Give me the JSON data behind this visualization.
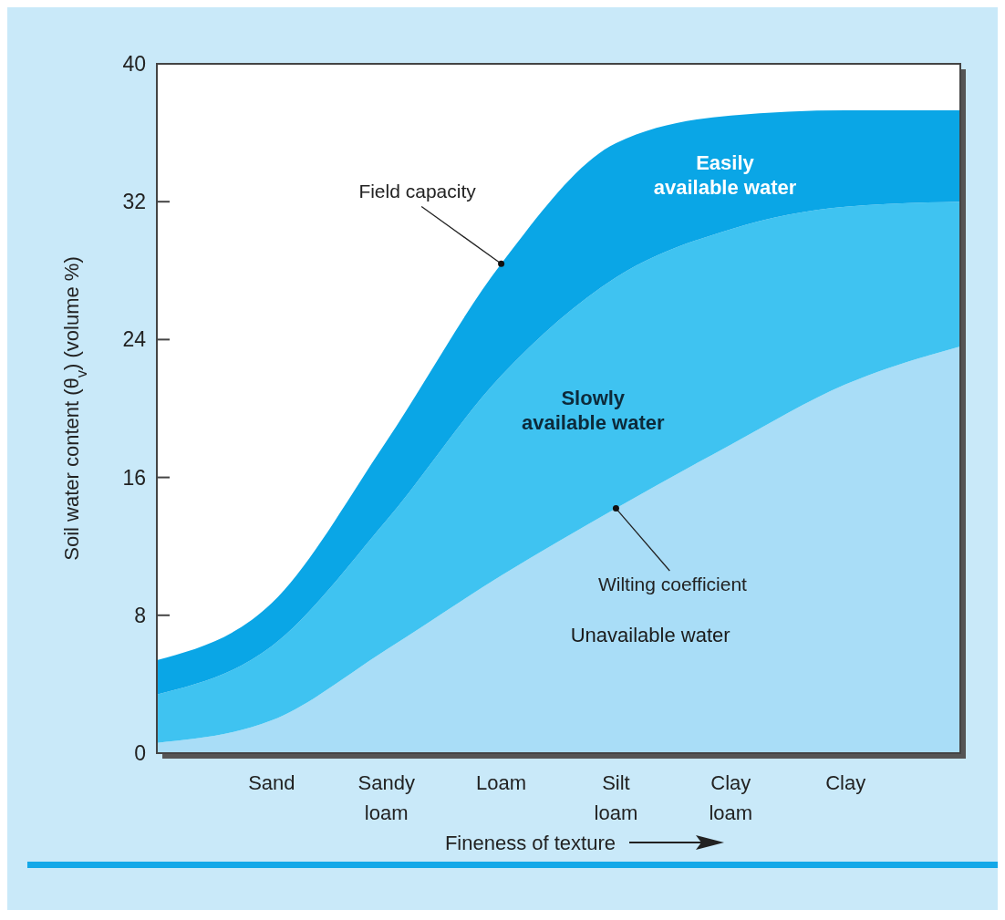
{
  "chart_data": {
    "type": "area",
    "stacked": true,
    "xlabel": "Fineness of texture",
    "ylabel": "Soil water content (θ$_{v}$) (volume %)",
    "categories": [
      null,
      "Sand",
      "Sandy loam",
      "Loam",
      "Silt loam",
      "Clay loam",
      "Clay",
      null
    ],
    "ylim": [
      0,
      40
    ],
    "yticks": [
      0,
      8,
      16,
      24,
      32,
      40
    ],
    "grid": false,
    "legend": false,
    "series": [
      {
        "name": "Unavailable water",
        "color": "#a9ddf7",
        "values": [
          0.6,
          1.9,
          6.0,
          10.3,
          14.2,
          17.9,
          21.4,
          23.6
        ]
      },
      {
        "name": "Slowly available water",
        "color": "#3fc3f1",
        "values": [
          2.8,
          4.3,
          7.5,
          11.6,
          13.4,
          12.5,
          10.3,
          8.4
        ]
      },
      {
        "name": "Easily available water",
        "color": "#0aa6e6",
        "values": [
          2.0,
          2.5,
          4.6,
          6.5,
          7.8,
          6.6,
          5.6,
          5.3
        ]
      }
    ],
    "annotations": [
      {
        "text": "Field capacity",
        "x": "Loam",
        "y": 28.4
      },
      {
        "text": "Wilting coefficient",
        "x": "Silt loam",
        "y": 14.2
      }
    ]
  }
}
